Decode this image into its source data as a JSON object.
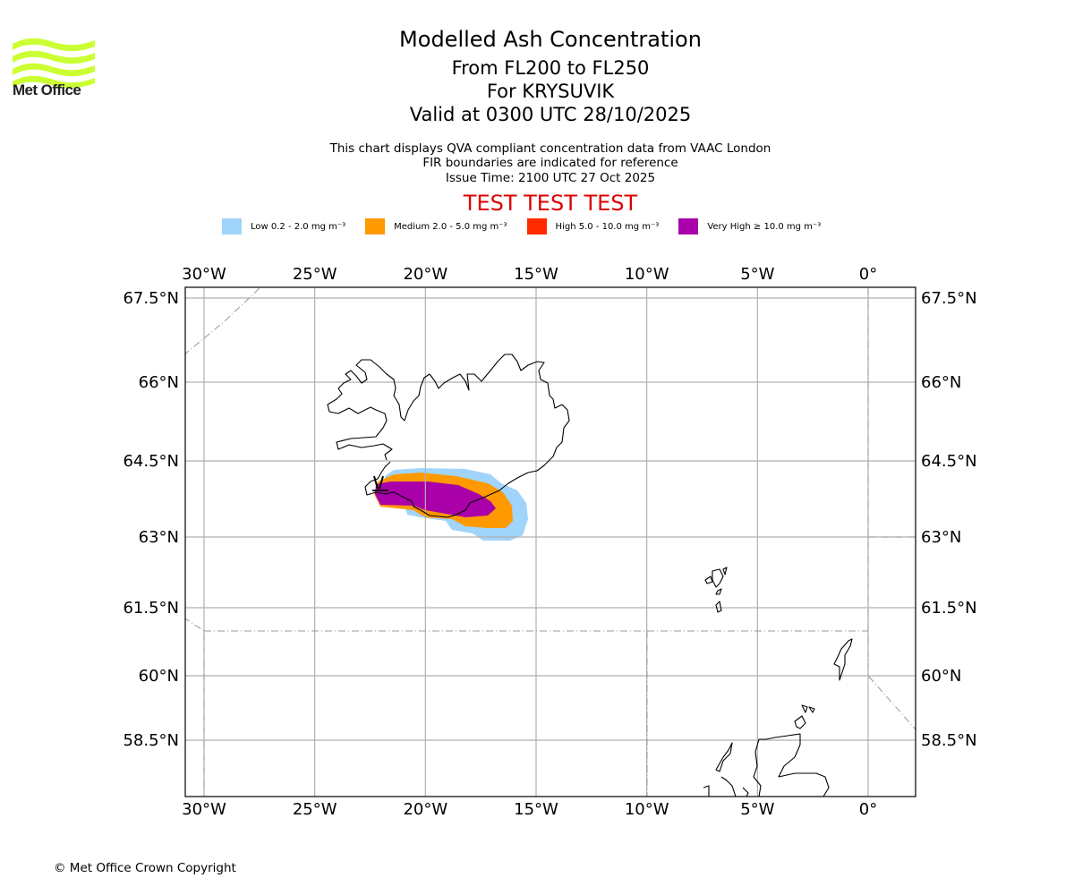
{
  "logo": {
    "text": "Met Office",
    "icon": "met-office-wave-logo",
    "color": "#ccff33"
  },
  "header": {
    "title": "Modelled Ash Concentration",
    "flight_levels": "From FL200 to FL250",
    "volcano": "For KRYSUVIK",
    "valid": "Valid at 0300 UTC 28/10/2025"
  },
  "info": {
    "line1": "This chart displays QVA compliant concentration data from VAAC London",
    "line2": "FIR boundaries are indicated for reference",
    "line3": "Issue Time: 2100 UTC 27 Oct 2025"
  },
  "banner": {
    "text": "TEST TEST TEST",
    "color": "#dd0000"
  },
  "legend": [
    {
      "label": "Low 0.2 - 2.0 mg m⁻³",
      "color": "#a0d4fa"
    },
    {
      "label": "Medium 2.0 - 5.0 mg m⁻³",
      "color": "#ff9900"
    },
    {
      "label": "High 5.0 - 10.0 mg m⁻³",
      "color": "#ff2a00"
    },
    {
      "label": "Very High  ≥  10.0 mg m⁻³",
      "color": "#aa00aa"
    }
  ],
  "map": {
    "lon_range": [
      -30.8,
      2.1
    ],
    "lat_range": [
      56.8,
      67.7
    ],
    "lon_ticks": [
      {
        "value": -30,
        "label": "30°W"
      },
      {
        "value": -25,
        "label": "25°W"
      },
      {
        "value": -20,
        "label": "20°W"
      },
      {
        "value": -15,
        "label": "15°W"
      },
      {
        "value": -10,
        "label": "10°W"
      },
      {
        "value": -5,
        "label": "5°W"
      },
      {
        "value": 0,
        "label": "0°"
      }
    ],
    "lat_ticks": [
      {
        "value": 67.5,
        "label": "67.5°N"
      },
      {
        "value": 66,
        "label": "66°N"
      },
      {
        "value": 64.5,
        "label": "64.5°N"
      },
      {
        "value": 63,
        "label": "63°N"
      },
      {
        "value": 61.5,
        "label": "61.5°N"
      },
      {
        "value": 60,
        "label": "60°N"
      },
      {
        "value": 58.5,
        "label": "58.5°N"
      }
    ],
    "ash_bands": [
      "low",
      "medium",
      "high",
      "very_high"
    ]
  },
  "footer": {
    "copyright": "© Met Office Crown Copyright"
  }
}
